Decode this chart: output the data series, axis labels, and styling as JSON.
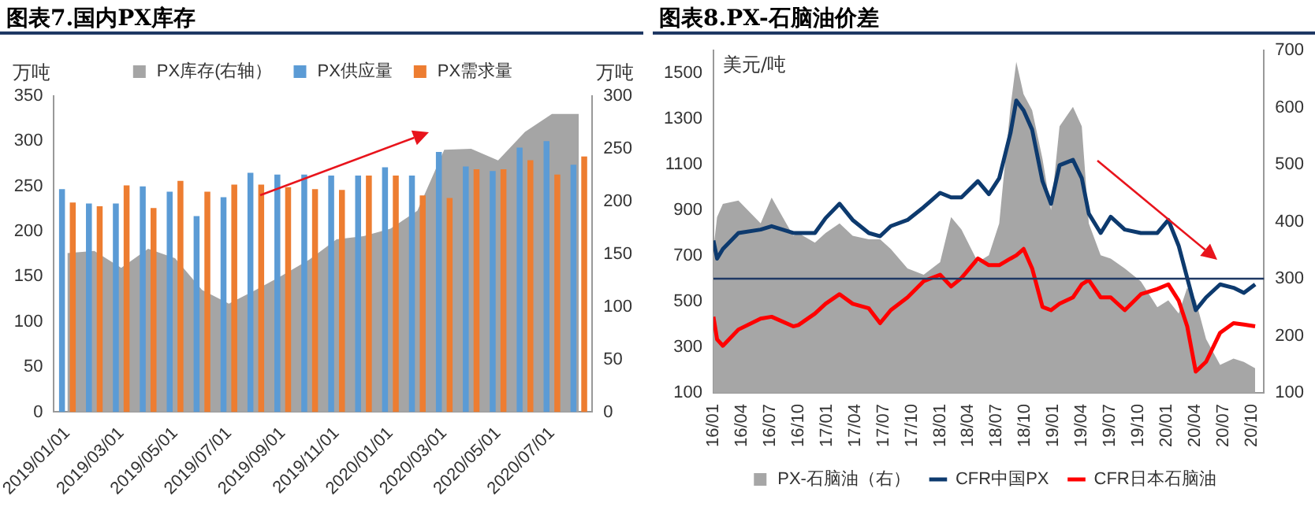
{
  "chart_data": [
    {
      "type": "bar",
      "title": "图表7.国内PX库存",
      "ylabel": "万吨",
      "y2label": "万吨",
      "categories": [
        "2019/01/01",
        null,
        "2019/03/01",
        null,
        "2019/05/01",
        null,
        "2019/07/01",
        null,
        "2019/09/01",
        null,
        "2019/11/01",
        null,
        "2020/01/01",
        null,
        "2020/03/01",
        null,
        "2020/05/01",
        null,
        "2020/07/01",
        null
      ],
      "series": [
        {
          "name": "PX库存(右轴）",
          "type": "area",
          "axis": "y2",
          "color": "#a5a5a5",
          "values": [
            151,
            153,
            137,
            155,
            146,
            116,
            103,
            116,
            130,
            145,
            164,
            167,
            174,
            191,
            249,
            250,
            239,
            266,
            283,
            283
          ]
        },
        {
          "name": "PX供应量",
          "type": "bar",
          "color": "#5b9bd5",
          "values": [
            247,
            231,
            231,
            250,
            244,
            217,
            238,
            265,
            263,
            263,
            262,
            262,
            271,
            262,
            288,
            272,
            267,
            293,
            300,
            274
          ]
        },
        {
          "name": "PX需求量",
          "type": "bar",
          "color": "#ed7d31",
          "values": [
            232,
            228,
            251,
            226,
            256,
            244,
            252,
            252,
            249,
            247,
            246,
            262,
            262,
            240,
            237,
            269,
            269,
            279,
            263,
            283
          ]
        }
      ],
      "ylim": [
        0,
        350
      ],
      "yticks": [
        0,
        50,
        100,
        150,
        200,
        250,
        300,
        350
      ],
      "y2lim": [
        0,
        300
      ],
      "y2ticks": [
        0,
        50,
        100,
        150,
        200,
        250,
        300
      ],
      "grid": false,
      "legend": "top"
    },
    {
      "type": "line",
      "title": "图表8.PX-石脑油价差",
      "ylabel": "美元/吨",
      "x": [
        "2016-01-01",
        "2016-01-13",
        "2016-02-01",
        "2016-03-21",
        "2016-06-01",
        "2016-07-06",
        "2016-09-15",
        "2016-10-01",
        "2016-11-24",
        "2016-12-28",
        "2017-02-12",
        "2017-03-24",
        "2017-05-15",
        "2017-06-21",
        "2017-07-25",
        "2017-09-18",
        "2017-11-09",
        "2018-01-01",
        "2018-02-06",
        "2018-03-09",
        "2018-05-01",
        "2018-06-06",
        "2018-07-09",
        "2018-08-15",
        "2018-09-03",
        "2018-09-27",
        "2018-10-24",
        "2018-11-27",
        "2018-12-24",
        "2019-01-21",
        "2019-03-03",
        "2019-04-01",
        "2019-04-24",
        "2019-06-01",
        "2019-07-03",
        "2019-08-18",
        "2019-10-09",
        "2019-12-01",
        "2020-01-06",
        "2020-02-09",
        "2020-03-06",
        "2020-04-03",
        "2020-05-06",
        "2020-06-21",
        "2020-08-03",
        "2020-09-06",
        "2020-10-12"
      ],
      "series": [
        {
          "name": "PX-石脑油（右）",
          "type": "area",
          "axis": "y2",
          "color": "#a6a6a6",
          "values": [
            352,
            408,
            431,
            437,
            397,
            442,
            375,
            380,
            363,
            380,
            397,
            375,
            369,
            369,
            352,
            318,
            307,
            329,
            408,
            386,
            329,
            341,
            397,
            601,
            680,
            623,
            595,
            510,
            420,
            567,
            601,
            567,
            397,
            341,
            335,
            318,
            295,
            250,
            262,
            239,
            284,
            262,
            194,
            149,
            160,
            154,
            143
          ]
        },
        {
          "name": "CFR中国PX",
          "type": "line",
          "color": "#0d3a6e",
          "values": [
            767,
            688,
            730,
            800,
            815,
            830,
            800,
            800,
            800,
            865,
            928,
            857,
            800,
            786,
            830,
            857,
            913,
            976,
            956,
            956,
            1027,
            970,
            1040,
            1238,
            1380,
            1337,
            1253,
            1027,
            928,
            1097,
            1120,
            1040,
            885,
            800,
            871,
            815,
            800,
            800,
            857,
            744,
            603,
            462,
            518,
            575,
            560,
            538,
            575
          ]
        },
        {
          "name": "CFR日本石脑油",
          "type": "line",
          "color": "#ff0000",
          "values": [
            433,
            334,
            306,
            377,
            425,
            433,
            391,
            397,
            447,
            490,
            532,
            490,
            470,
            405,
            462,
            518,
            589,
            617,
            566,
            603,
            688,
            659,
            659,
            688,
            702,
            730,
            645,
            476,
            462,
            490,
            518,
            575,
            594,
            518,
            518,
            462,
            532,
            555,
            575,
            504,
            391,
            193,
            236,
            363,
            405,
            399,
            391
          ]
        }
      ],
      "xlim": [
        "2016-01-01",
        "2020-11-10"
      ],
      "xticks": [
        {
          "value": "2016-01",
          "label": "16/01"
        },
        {
          "value": "2016-04",
          "label": "16/04"
        },
        {
          "value": "2016-07",
          "label": "16/07"
        },
        {
          "value": "2016-10",
          "label": "16/10"
        },
        {
          "value": "2017-01",
          "label": "17/01"
        },
        {
          "value": "2017-04",
          "label": "17/04"
        },
        {
          "value": "2017-07",
          "label": "17/07"
        },
        {
          "value": "2017-10",
          "label": "17/10"
        },
        {
          "value": "2018-01",
          "label": "18/01"
        },
        {
          "value": "2018-04",
          "label": "18/04"
        },
        {
          "value": "2018-07",
          "label": "18/07"
        },
        {
          "value": "2018-10",
          "label": "18/10"
        },
        {
          "value": "2019-01",
          "label": "19/01"
        },
        {
          "value": "2019-04",
          "label": "19/04"
        },
        {
          "value": "2019-07",
          "label": "19/07"
        },
        {
          "value": "2019-10",
          "label": "19/10"
        },
        {
          "value": "2020-01",
          "label": "20/01"
        },
        {
          "value": "2020-04",
          "label": "20/04"
        },
        {
          "value": "2020-07",
          "label": "20/07"
        },
        {
          "value": "2020-10",
          "label": "20/10"
        }
      ],
      "ylim": [
        100,
        1600
      ],
      "yticks": [
        100,
        300,
        500,
        700,
        900,
        1100,
        1300,
        1500
      ],
      "y2lim": [
        100,
        700
      ],
      "y2ticks": [
        100,
        200,
        300,
        400,
        500,
        600,
        700
      ],
      "ref_lines": [
        {
          "axis": "y",
          "value": 600,
          "color": "#1f3864"
        }
      ],
      "grid": false,
      "legend": "bottom"
    }
  ]
}
